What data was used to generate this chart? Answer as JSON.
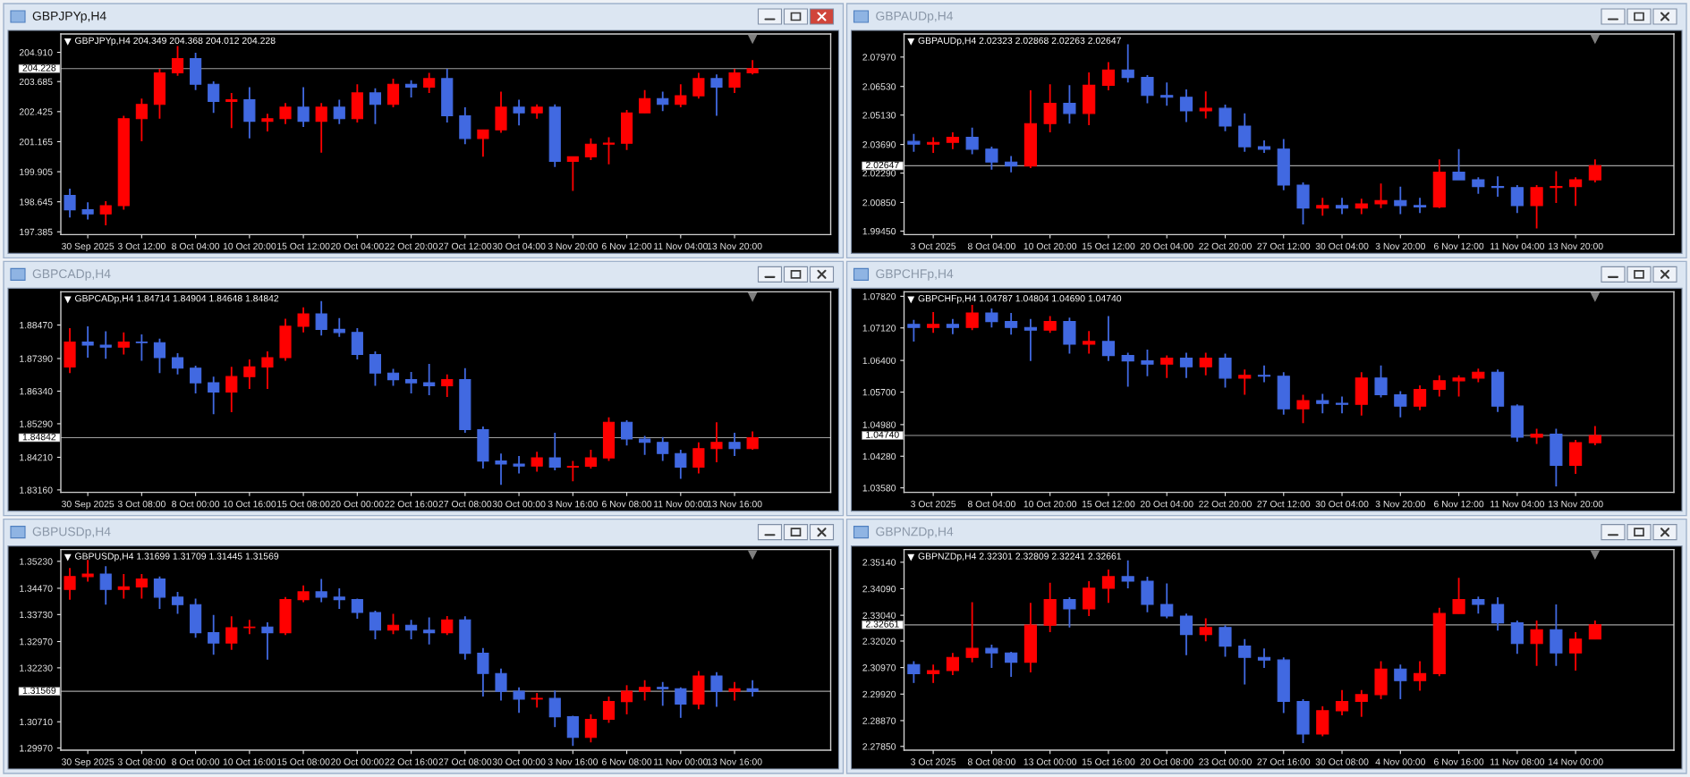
{
  "chart_data": [
    {
      "type": "candlestick",
      "title": "GBPJPYp,H4",
      "subtitle": "GBPJPYp,H4 204.349 204.368 204.012 204.228",
      "categories": [
        null,
        "30 Sep 2025",
        null,
        null,
        "3 Oct 12:00",
        null,
        null,
        "8 Oct 04:00",
        null,
        null,
        "10 Oct 20:00",
        null,
        null,
        "15 Oct 12:00",
        null,
        null,
        "20 Oct 04:00",
        null,
        null,
        "22 Oct 20:00",
        null,
        null,
        "27 Oct 12:00",
        null,
        null,
        "30 Oct 04:00",
        null,
        null,
        "3 Nov 20:00",
        null,
        null,
        "6 Nov 12:00",
        null,
        null,
        "11 Nov 04:00",
        null,
        null,
        "13 Nov 20:00",
        null
      ],
      "ohlc": [
        [
          198.91,
          199.19,
          197.99,
          198.31
        ],
        [
          198.31,
          198.62,
          197.9,
          198.14
        ],
        [
          198.14,
          198.67,
          197.66,
          198.48
        ],
        [
          198.48,
          202.25,
          198.31,
          202.13
        ],
        [
          202.13,
          202.97,
          201.18,
          202.73
        ],
        [
          202.73,
          204.22,
          202.13,
          204.05
        ],
        [
          204.05,
          205.17,
          203.93,
          204.65
        ],
        [
          204.65,
          204.89,
          203.33,
          203.57
        ],
        [
          203.57,
          203.69,
          202.37,
          202.85
        ],
        [
          202.85,
          203.21,
          201.73,
          202.92
        ],
        [
          202.92,
          203.45,
          201.3,
          202.02
        ],
        [
          202.02,
          202.33,
          201.59,
          202.13
        ],
        [
          202.13,
          202.78,
          201.9,
          202.61
        ],
        [
          202.61,
          203.45,
          201.78,
          202.02
        ],
        [
          202.02,
          202.78,
          200.7,
          202.61
        ],
        [
          202.61,
          202.92,
          201.9,
          202.13
        ],
        [
          202.13,
          203.57,
          201.97,
          203.21
        ],
        [
          203.21,
          203.4,
          201.9,
          202.73
        ],
        [
          202.73,
          203.81,
          202.61,
          203.57
        ],
        [
          203.57,
          203.74,
          203.02,
          203.45
        ],
        [
          203.45,
          204.05,
          203.21,
          203.81
        ],
        [
          203.81,
          204.22,
          201.97,
          202.25
        ],
        [
          202.25,
          202.61,
          201.06,
          201.3
        ],
        [
          201.3,
          201.66,
          200.53,
          201.66
        ],
        [
          201.66,
          203.26,
          201.54,
          202.61
        ],
        [
          202.61,
          202.92,
          201.85,
          202.37
        ],
        [
          202.37,
          202.73,
          202.13,
          202.61
        ],
        [
          202.61,
          202.73,
          200.1,
          200.34
        ],
        [
          200.34,
          200.53,
          199.1,
          200.53
        ],
        [
          200.53,
          201.3,
          200.39,
          201.06
        ],
        [
          201.06,
          201.35,
          200.22,
          201.1
        ],
        [
          201.1,
          202.49,
          200.82,
          202.37
        ],
        [
          202.37,
          203.33,
          202.37,
          202.97
        ],
        [
          202.97,
          203.26,
          202.45,
          202.73
        ],
        [
          202.73,
          203.57,
          202.61,
          203.09
        ],
        [
          203.09,
          204.05,
          202.97,
          203.81
        ],
        [
          203.81,
          203.98,
          202.25,
          203.45
        ],
        [
          203.45,
          204.22,
          203.21,
          204.05
        ],
        [
          204.05,
          204.58,
          203.98,
          204.228
        ]
      ],
      "colors": [
        "#4169e1",
        "#4169e1",
        "#ff0000",
        "#ff0000",
        "#ff0000",
        "#ff0000",
        "#ff0000",
        "#4169e1",
        "#4169e1",
        "#ff0000",
        "#4169e1",
        "#ff0000",
        "#ff0000",
        "#4169e1",
        "#ff0000",
        "#4169e1",
        "#ff0000",
        "#4169e1",
        "#ff0000",
        "#4169e1",
        "#ff0000",
        "#4169e1",
        "#4169e1",
        "#ff0000",
        "#ff0000",
        "#4169e1",
        "#ff0000",
        "#4169e1",
        "#ff0000",
        "#ff0000",
        "#ff0000",
        "#ff0000",
        "#ff0000",
        "#4169e1",
        "#ff0000",
        "#ff0000",
        "#4169e1",
        "#ff0000",
        "#ff0000"
      ],
      "ylim": [
        197.27,
        205.68
      ],
      "yticks": [
        {
          "value": 204.91,
          "label": "204.910"
        },
        {
          "value": 203.685,
          "label": "203.685"
        },
        {
          "value": 202.425,
          "label": "202.425"
        },
        {
          "value": 201.165,
          "label": "201.165"
        },
        {
          "value": 199.905,
          "label": "199.905"
        },
        {
          "value": 198.645,
          "label": "198.645"
        },
        {
          "value": 197.385,
          "label": "197.385"
        }
      ],
      "ref_lines": [
        {
          "axis": "y",
          "value": 204.228,
          "label": "204.228",
          "color": "#a0a0a0"
        }
      ]
    },
    {
      "type": "candlestick",
      "title": "GBPAUDp,H4",
      "subtitle": "GBPAUDp,H4 2.02323 2.02868 2.02263 2.02647",
      "categories": [
        null,
        "3 Oct 2025",
        null,
        null,
        "8 Oct 04:00",
        null,
        null,
        "10 Oct 20:00",
        null,
        null,
        "15 Oct 12:00",
        null,
        null,
        "20 Oct 04:00",
        null,
        null,
        "22 Oct 20:00",
        null,
        null,
        "27 Oct 12:00",
        null,
        null,
        "30 Oct 04:00",
        null,
        null,
        "3 Nov 20:00",
        null,
        null,
        "6 Nov 12:00",
        null,
        null,
        "11 Nov 04:00",
        null,
        null,
        "13 Nov 20:00",
        null
      ],
      "ohlc": [
        [
          2.0384,
          2.0421,
          2.0333,
          2.0371
        ],
        [
          2.0371,
          2.0404,
          2.0328,
          2.0379
        ],
        [
          2.0379,
          2.0429,
          2.0346,
          2.0404
        ],
        [
          2.0404,
          2.0451,
          2.0321,
          2.0346
        ],
        [
          2.0346,
          2.0358,
          2.0246,
          2.0283
        ],
        [
          2.0283,
          2.0313,
          2.0233,
          2.0263
        ],
        [
          2.0263,
          2.0634,
          2.0253,
          2.0471
        ],
        [
          2.0471,
          2.0664,
          2.0429,
          2.0571
        ],
        [
          2.0571,
          2.0659,
          2.0471,
          2.0521
        ],
        [
          2.0521,
          2.0722,
          2.0464,
          2.0659
        ],
        [
          2.0659,
          2.0772,
          2.0634,
          2.0734
        ],
        [
          2.0734,
          2.086,
          2.0672,
          2.0697
        ],
        [
          2.0697,
          2.0709,
          2.0571,
          2.0609
        ],
        [
          2.0609,
          2.0672,
          2.0559,
          2.06
        ],
        [
          2.06,
          2.0639,
          2.0479,
          2.0534
        ],
        [
          2.0534,
          2.0629,
          2.0496,
          2.0546
        ],
        [
          2.0546,
          2.0564,
          2.0434,
          2.0459
        ],
        [
          2.0459,
          2.0521,
          2.0333,
          2.0358
        ],
        [
          2.0358,
          2.0389,
          2.0328,
          2.0346
        ],
        [
          2.0346,
          2.0396,
          2.0145,
          2.017
        ],
        [
          2.017,
          2.0183,
          1.9978,
          2.0058
        ],
        [
          2.0058,
          2.0108,
          2.002,
          2.007
        ],
        [
          2.007,
          2.0108,
          2.0028,
          2.0058
        ],
        [
          2.0058,
          2.0103,
          2.0028,
          2.0078
        ],
        [
          2.0078,
          2.0178,
          2.0058,
          2.0095
        ],
        [
          2.0095,
          2.0163,
          2.0028,
          2.007
        ],
        [
          2.007,
          2.0108,
          2.0033,
          2.0063
        ],
        [
          2.0063,
          2.0296,
          2.0058,
          2.0233
        ],
        [
          2.0233,
          2.0346,
          2.0196,
          2.0196
        ],
        [
          2.0196,
          2.0208,
          2.0128,
          2.0163
        ],
        [
          2.0163,
          2.0213,
          2.0113,
          2.0158
        ],
        [
          2.0158,
          2.017,
          2.0033,
          2.007
        ],
        [
          2.007,
          2.017,
          1.9958,
          2.0158
        ],
        [
          2.0158,
          2.0238,
          2.0083,
          2.0163
        ],
        [
          2.0163,
          2.0208,
          2.0068,
          2.0196
        ],
        [
          2.0196,
          2.0296,
          2.0183,
          2.02647
        ]
      ],
      "colors": [
        "#4169e1",
        "#ff0000",
        "#ff0000",
        "#4169e1",
        "#4169e1",
        "#4169e1",
        "#ff0000",
        "#ff0000",
        "#4169e1",
        "#ff0000",
        "#ff0000",
        "#4169e1",
        "#4169e1",
        "#4169e1",
        "#4169e1",
        "#ff0000",
        "#4169e1",
        "#4169e1",
        "#4169e1",
        "#4169e1",
        "#4169e1",
        "#ff0000",
        "#4169e1",
        "#ff0000",
        "#ff0000",
        "#4169e1",
        "#4169e1",
        "#ff0000",
        "#4169e1",
        "#4169e1",
        "#4169e1",
        "#4169e1",
        "#ff0000",
        "#ff0000",
        "#ff0000",
        "#ff0000"
      ],
      "ylim": [
        1.9928,
        2.091
      ],
      "yticks": [
        {
          "value": 2.0797,
          "label": "2.07970"
        },
        {
          "value": 2.0653,
          "label": "2.06530"
        },
        {
          "value": 2.0513,
          "label": "2.05130"
        },
        {
          "value": 2.0369,
          "label": "2.03690"
        },
        {
          "value": 2.0229,
          "label": "2.02290"
        },
        {
          "value": 2.0085,
          "label": "2.00850"
        },
        {
          "value": 1.9945,
          "label": "1.99450"
        }
      ],
      "ref_lines": [
        {
          "axis": "y",
          "value": 2.02647,
          "label": "2.02647",
          "color": "#a0a0a0"
        }
      ]
    },
    {
      "type": "candlestick",
      "title": "GBPCADp,H4",
      "subtitle": "GBPCADp,H4 1.84714 1.84904 1.84648 1.84842",
      "categories": [
        null,
        "30 Sep 2025",
        null,
        null,
        "3 Oct 08:00",
        null,
        null,
        "8 Oct 00:00",
        null,
        null,
        "10 Oct 16:00",
        null,
        null,
        "15 Oct 08:00",
        null,
        null,
        "20 Oct 00:00",
        null,
        null,
        "22 Oct 16:00",
        null,
        null,
        "27 Oct 08:00",
        null,
        null,
        "30 Oct 00:00",
        null,
        null,
        "3 Nov 16:00",
        null,
        null,
        "6 Nov 08:00",
        null,
        null,
        "11 Nov 00:00",
        null,
        null,
        "13 Nov 16:00",
        null
      ],
      "ohlc": [
        [
          1.8712,
          1.8837,
          1.8692,
          1.8792
        ],
        [
          1.8792,
          1.8843,
          1.8742,
          1.8782
        ],
        [
          1.8782,
          1.8827,
          1.8738,
          1.8776
        ],
        [
          1.8776,
          1.8823,
          1.8752,
          1.8792
        ],
        [
          1.8792,
          1.8817,
          1.8732,
          1.879
        ],
        [
          1.879,
          1.8803,
          1.8692,
          1.8742
        ],
        [
          1.8742,
          1.8756,
          1.8688,
          1.8708
        ],
        [
          1.8708,
          1.8716,
          1.8627,
          1.8661
        ],
        [
          1.8661,
          1.8681,
          1.856,
          1.8631
        ],
        [
          1.8631,
          1.8712,
          1.8566,
          1.8681
        ],
        [
          1.8681,
          1.8736,
          1.8641,
          1.8712
        ],
        [
          1.8712,
          1.8762,
          1.8641,
          1.8742
        ],
        [
          1.8742,
          1.8867,
          1.8732,
          1.8843
        ],
        [
          1.8843,
          1.8904,
          1.8823,
          1.8883
        ],
        [
          1.8883,
          1.8924,
          1.8813,
          1.8833
        ],
        [
          1.8833,
          1.8869,
          1.8809,
          1.8823
        ],
        [
          1.8823,
          1.8837,
          1.8736,
          1.8752
        ],
        [
          1.8752,
          1.8762,
          1.8651,
          1.8692
        ],
        [
          1.8692,
          1.8706,
          1.8651,
          1.8671
        ],
        [
          1.8671,
          1.8696,
          1.8627,
          1.8661
        ],
        [
          1.8661,
          1.8722,
          1.8621,
          1.8651
        ],
        [
          1.8651,
          1.8688,
          1.8615,
          1.8671
        ],
        [
          1.8671,
          1.8708,
          1.85,
          1.851
        ],
        [
          1.851,
          1.852,
          1.8385,
          1.8409
        ],
        [
          1.8409,
          1.8433,
          1.8332,
          1.8399
        ],
        [
          1.8399,
          1.8425,
          1.8369,
          1.8393
        ],
        [
          1.8393,
          1.8439,
          1.8375,
          1.8419
        ],
        [
          1.8419,
          1.85,
          1.8379,
          1.8389
        ],
        [
          1.8389,
          1.8409,
          1.8344,
          1.8392
        ],
        [
          1.8392,
          1.8445,
          1.8385,
          1.8419
        ],
        [
          1.8419,
          1.855,
          1.8409,
          1.8534
        ],
        [
          1.8534,
          1.854,
          1.8459,
          1.848
        ],
        [
          1.848,
          1.849,
          1.8429,
          1.8469
        ],
        [
          1.8469,
          1.8486,
          1.8409,
          1.8433
        ],
        [
          1.8433,
          1.8445,
          1.8352,
          1.8389
        ],
        [
          1.8389,
          1.8469,
          1.8369,
          1.8449
        ],
        [
          1.8449,
          1.8534,
          1.8405,
          1.8469
        ],
        [
          1.8469,
          1.85,
          1.8425,
          1.8449
        ],
        [
          1.8449,
          1.8504,
          1.8445,
          1.84842
        ]
      ],
      "colors": [
        "#ff0000",
        "#4169e1",
        "#4169e1",
        "#ff0000",
        "#4169e1",
        "#4169e1",
        "#4169e1",
        "#4169e1",
        "#4169e1",
        "#ff0000",
        "#ff0000",
        "#ff0000",
        "#ff0000",
        "#ff0000",
        "#4169e1",
        "#4169e1",
        "#4169e1",
        "#4169e1",
        "#4169e1",
        "#4169e1",
        "#4169e1",
        "#ff0000",
        "#4169e1",
        "#4169e1",
        "#4169e1",
        "#4169e1",
        "#ff0000",
        "#4169e1",
        "#ff0000",
        "#ff0000",
        "#ff0000",
        "#4169e1",
        "#4169e1",
        "#4169e1",
        "#4169e1",
        "#ff0000",
        "#ff0000",
        "#4169e1",
        "#ff0000"
      ],
      "ylim": [
        1.8308,
        1.8954
      ],
      "yticks": [
        {
          "value": 1.8847,
          "label": "1.88470"
        },
        {
          "value": 1.8739,
          "label": "1.87390"
        },
        {
          "value": 1.8634,
          "label": "1.86340"
        },
        {
          "value": 1.8529,
          "label": "1.85290"
        },
        {
          "value": 1.8421,
          "label": "1.84210"
        },
        {
          "value": 1.8316,
          "label": "1.83160"
        }
      ],
      "ref_lines": [
        {
          "axis": "y",
          "value": 1.84842,
          "label": "1.84842",
          "color": "#a0a0a0"
        }
      ]
    },
    {
      "type": "candlestick",
      "title": "GBPCHFp,H4",
      "subtitle": "GBPCHFp,H4 1.04787 1.04804 1.04690 1.04740",
      "categories": [
        null,
        "3 Oct 2025",
        null,
        null,
        "8 Oct 04:00",
        null,
        null,
        "10 Oct 20:00",
        null,
        null,
        "15 Oct 12:00",
        null,
        null,
        "20 Oct 04:00",
        null,
        null,
        "22 Oct 20:00",
        null,
        null,
        "27 Oct 12:00",
        null,
        null,
        "30 Oct 04:00",
        null,
        null,
        "3 Nov 20:00",
        null,
        null,
        "6 Nov 12:00",
        null,
        null,
        "11 Nov 04:00",
        null,
        null,
        "13 Nov 20:00",
        null
      ],
      "ohlc": [
        [
          1.072,
          1.073,
          1.0682,
          1.0713
        ],
        [
          1.0713,
          1.0747,
          1.0701,
          1.072
        ],
        [
          1.072,
          1.0732,
          1.0698,
          1.0713
        ],
        [
          1.0713,
          1.0763,
          1.0707,
          1.0745
        ],
        [
          1.0745,
          1.0755,
          1.0713,
          1.0726
        ],
        [
          1.0726,
          1.0745,
          1.0697,
          1.0713
        ],
        [
          1.0713,
          1.0732,
          1.0639,
          1.0707
        ],
        [
          1.0707,
          1.0738,
          1.0701,
          1.0726
        ],
        [
          1.0726,
          1.0735,
          1.0655,
          1.0676
        ],
        [
          1.0676,
          1.0705,
          1.0655,
          1.0682
        ],
        [
          1.0682,
          1.0738,
          1.0639,
          1.0651
        ],
        [
          1.0651,
          1.0657,
          1.0582,
          1.0639
        ],
        [
          1.0639,
          1.0664,
          1.0605,
          1.0632
        ],
        [
          1.0632,
          1.0651,
          1.0601,
          1.0645
        ],
        [
          1.0645,
          1.0657,
          1.0601,
          1.0626
        ],
        [
          1.0626,
          1.0657,
          1.0607,
          1.0645
        ],
        [
          1.0645,
          1.0655,
          1.058,
          1.0601
        ],
        [
          1.0601,
          1.062,
          1.0564,
          1.0607
        ],
        [
          1.0607,
          1.0629,
          1.0592,
          1.0605
        ],
        [
          1.0605,
          1.0614,
          1.052,
          1.0533
        ],
        [
          1.0533,
          1.0564,
          1.0501,
          1.0551
        ],
        [
          1.0551,
          1.0566,
          1.0523,
          1.0545
        ],
        [
          1.0545,
          1.056,
          1.0523,
          1.0543
        ],
        [
          1.0543,
          1.0614,
          1.0518,
          1.0601
        ],
        [
          1.0601,
          1.0629,
          1.0558,
          1.0564
        ],
        [
          1.0564,
          1.0572,
          1.0514,
          1.0539
        ],
        [
          1.0539,
          1.0585,
          1.053,
          1.0576
        ],
        [
          1.0576,
          1.0607,
          1.056,
          1.0595
        ],
        [
          1.0595,
          1.0607,
          1.056,
          1.0601
        ],
        [
          1.0601,
          1.0622,
          1.0592,
          1.0614
        ],
        [
          1.0614,
          1.062,
          1.0526,
          1.0539
        ],
        [
          1.0539,
          1.0543,
          1.046,
          1.047
        ],
        [
          1.047,
          1.0489,
          1.0455,
          1.0477
        ],
        [
          1.0477,
          1.0489,
          1.0361,
          1.0408
        ],
        [
          1.0408,
          1.0464,
          1.0389,
          1.0458
        ],
        [
          1.0458,
          1.0495,
          1.0452,
          1.0474
        ]
      ],
      "colors": [
        "#4169e1",
        "#ff0000",
        "#4169e1",
        "#ff0000",
        "#4169e1",
        "#4169e1",
        "#4169e1",
        "#ff0000",
        "#4169e1",
        "#ff0000",
        "#4169e1",
        "#4169e1",
        "#4169e1",
        "#ff0000",
        "#4169e1",
        "#ff0000",
        "#4169e1",
        "#ff0000",
        "#4169e1",
        "#4169e1",
        "#ff0000",
        "#4169e1",
        "#4169e1",
        "#ff0000",
        "#4169e1",
        "#4169e1",
        "#ff0000",
        "#ff0000",
        "#ff0000",
        "#ff0000",
        "#4169e1",
        "#4169e1",
        "#ff0000",
        "#4169e1",
        "#ff0000",
        "#ff0000"
      ],
      "ylim": [
        1.0348,
        1.0792
      ],
      "yticks": [
        {
          "value": 1.0782,
          "label": "1.07820"
        },
        {
          "value": 1.0712,
          "label": "1.07120"
        },
        {
          "value": 1.064,
          "label": "1.06400"
        },
        {
          "value": 1.057,
          "label": "1.05700"
        },
        {
          "value": 1.0498,
          "label": "1.04980"
        },
        {
          "value": 1.0428,
          "label": "1.04280"
        },
        {
          "value": 1.0358,
          "label": "1.03580"
        }
      ],
      "ref_lines": [
        {
          "axis": "y",
          "value": 1.0474,
          "label": "1.04740",
          "color": "#a0a0a0"
        }
      ]
    },
    {
      "type": "candlestick",
      "title": "GBPUSDp,H4",
      "subtitle": "GBPUSDp,H4 1.31699 1.31709 1.31445 1.31569",
      "categories": [
        null,
        "30 Sep 2025",
        null,
        null,
        "3 Oct 08:00",
        null,
        null,
        "8 Oct 00:00",
        null,
        null,
        "10 Oct 16:00",
        null,
        null,
        "15 Oct 08:00",
        null,
        null,
        "20 Oct 00:00",
        null,
        null,
        "22 Oct 16:00",
        null,
        null,
        "27 Oct 08:00",
        null,
        null,
        "30 Oct 00:00",
        null,
        null,
        "3 Nov 16:00",
        null,
        null,
        "6 Nov 08:00",
        null,
        null,
        "11 Nov 00:00",
        null,
        null,
        "13 Nov 16:00",
        null
      ],
      "ohlc": [
        [
          1.3444,
          1.3504,
          1.3415,
          1.348
        ],
        [
          1.348,
          1.3527,
          1.3466,
          1.3487
        ],
        [
          1.3487,
          1.3509,
          1.3401,
          1.3444
        ],
        [
          1.3444,
          1.3487,
          1.3418,
          1.3451
        ],
        [
          1.3451,
          1.3487,
          1.3418,
          1.3473
        ],
        [
          1.3473,
          1.348,
          1.3389,
          1.3422
        ],
        [
          1.3422,
          1.3437,
          1.3375,
          1.3401
        ],
        [
          1.3401,
          1.3418,
          1.3308,
          1.3322
        ],
        [
          1.3322,
          1.3372,
          1.326,
          1.3293
        ],
        [
          1.3293,
          1.3368,
          1.3274,
          1.3336
        ],
        [
          1.3336,
          1.3358,
          1.3318,
          1.3338
        ],
        [
          1.3338,
          1.3351,
          1.3246,
          1.3322
        ],
        [
          1.3322,
          1.3422,
          1.3315,
          1.3415
        ],
        [
          1.3415,
          1.3455,
          1.3408,
          1.3437
        ],
        [
          1.3437,
          1.3473,
          1.3408,
          1.3422
        ],
        [
          1.3422,
          1.3447,
          1.3389,
          1.3415
        ],
        [
          1.3415,
          1.3418,
          1.3361,
          1.3379
        ],
        [
          1.3379,
          1.3384,
          1.3303,
          1.3329
        ],
        [
          1.3329,
          1.3375,
          1.3318,
          1.3343
        ],
        [
          1.3343,
          1.3358,
          1.3303,
          1.3329
        ],
        [
          1.3329,
          1.3365,
          1.3289,
          1.3322
        ],
        [
          1.3322,
          1.3369,
          1.3315,
          1.3358
        ],
        [
          1.3358,
          1.3368,
          1.3246,
          1.3264
        ],
        [
          1.3264,
          1.3279,
          1.3142,
          1.3207
        ],
        [
          1.3207,
          1.3221,
          1.3131,
          1.3157
        ],
        [
          1.3157,
          1.3168,
          1.3096,
          1.3135
        ],
        [
          1.3135,
          1.3152,
          1.3111,
          1.3137
        ],
        [
          1.3137,
          1.3159,
          1.3056,
          1.3085
        ],
        [
          1.3085,
          1.3088,
          1.3003,
          1.3027
        ],
        [
          1.3027,
          1.3092,
          1.3013,
          1.3078
        ],
        [
          1.3078,
          1.3142,
          1.3068,
          1.3128
        ],
        [
          1.3128,
          1.3174,
          1.3092,
          1.3157
        ],
        [
          1.3157,
          1.3188,
          1.3131,
          1.3168
        ],
        [
          1.3168,
          1.3183,
          1.3116,
          1.3164
        ],
        [
          1.3164,
          1.3168,
          1.3082,
          1.3121
        ],
        [
          1.3121,
          1.3214,
          1.3106,
          1.32
        ],
        [
          1.32,
          1.3211,
          1.3113,
          1.3157
        ],
        [
          1.3157,
          1.3183,
          1.3131,
          1.3164
        ],
        [
          1.3164,
          1.3188,
          1.3142,
          1.31569
        ]
      ],
      "colors": [
        "#ff0000",
        "#ff0000",
        "#4169e1",
        "#ff0000",
        "#ff0000",
        "#4169e1",
        "#4169e1",
        "#4169e1",
        "#4169e1",
        "#ff0000",
        "#ff0000",
        "#4169e1",
        "#ff0000",
        "#ff0000",
        "#4169e1",
        "#4169e1",
        "#4169e1",
        "#4169e1",
        "#ff0000",
        "#4169e1",
        "#4169e1",
        "#ff0000",
        "#4169e1",
        "#4169e1",
        "#4169e1",
        "#4169e1",
        "#ff0000",
        "#4169e1",
        "#4169e1",
        "#ff0000",
        "#ff0000",
        "#ff0000",
        "#ff0000",
        "#4169e1",
        "#4169e1",
        "#ff0000",
        "#4169e1",
        "#ff0000",
        "#4169e1"
      ],
      "ylim": [
        1.2991,
        1.3556
      ],
      "yticks": [
        {
          "value": 1.3523,
          "label": "1.35230"
        },
        {
          "value": 1.3447,
          "label": "1.34470"
        },
        {
          "value": 1.3373,
          "label": "1.33730"
        },
        {
          "value": 1.3297,
          "label": "1.32970"
        },
        {
          "value": 1.3223,
          "label": "1.32230"
        },
        {
          "value": 1.3147,
          "label": null
        },
        {
          "value": 1.3071,
          "label": "1.30710"
        },
        {
          "value": 1.2997,
          "label": "1.29970"
        }
      ],
      "ref_lines": [
        {
          "axis": "y",
          "value": 1.31569,
          "label": "1.31569",
          "color": "#a0a0a0"
        }
      ]
    },
    {
      "type": "candlestick",
      "title": "GBPNZDp,H4",
      "subtitle": "GBPNZDp,H4 2.32301 2.32809 2.32241 2.32661",
      "categories": [
        null,
        "3 Oct 2025",
        null,
        null,
        "8 Oct 08:00",
        null,
        null,
        "13 Oct 00:00",
        null,
        null,
        "15 Oct 16:00",
        null,
        null,
        "20 Oct 08:00",
        null,
        null,
        "23 Oct 00:00",
        null,
        null,
        "27 Oct 16:00",
        null,
        null,
        "30 Oct 08:00",
        null,
        null,
        "4 Nov 00:00",
        null,
        null,
        "6 Nov 16:00",
        null,
        null,
        "11 Nov 08:00",
        null,
        null,
        "14 Nov 00:00",
        null
      ],
      "ohlc": [
        [
          2.3109,
          2.3122,
          2.3036,
          2.3073
        ],
        [
          2.3073,
          2.3109,
          2.3036,
          2.3085
        ],
        [
          2.3085,
          2.3155,
          2.3067,
          2.3137
        ],
        [
          2.3137,
          2.3356,
          2.3118,
          2.3173
        ],
        [
          2.3173,
          2.3188,
          2.3096,
          2.3155
        ],
        [
          2.3155,
          2.3159,
          2.306,
          2.3118
        ],
        [
          2.3118,
          2.3353,
          2.3078,
          2.3265
        ],
        [
          2.3265,
          2.3433,
          2.3237,
          2.3366
        ],
        [
          2.3366,
          2.3375,
          2.3256,
          2.3329
        ],
        [
          2.3329,
          2.3439,
          2.3301,
          2.3411
        ],
        [
          2.3411,
          2.3485,
          2.3353,
          2.3457
        ],
        [
          2.3457,
          2.3521,
          2.3411,
          2.3439
        ],
        [
          2.3439,
          2.3457,
          2.3316,
          2.3347
        ],
        [
          2.3347,
          2.343,
          2.3292,
          2.3301
        ],
        [
          2.3301,
          2.3311,
          2.3146,
          2.3228
        ],
        [
          2.3228,
          2.3292,
          2.3201,
          2.3256
        ],
        [
          2.3256,
          2.3265,
          2.314,
          2.3182
        ],
        [
          2.3182,
          2.321,
          2.303,
          2.3137
        ],
        [
          2.3137,
          2.3173,
          2.3096,
          2.3127
        ],
        [
          2.3127,
          2.3137,
          2.2917,
          2.2963
        ],
        [
          2.2963,
          2.2972,
          2.2798,
          2.2834
        ],
        [
          2.2834,
          2.2944,
          2.2825,
          2.2926
        ],
        [
          2.2926,
          2.3008,
          2.2908,
          2.2963
        ],
        [
          2.2963,
          2.3008,
          2.2902,
          2.299
        ],
        [
          2.299,
          2.3122,
          2.2972,
          2.3091
        ],
        [
          2.3091,
          2.3109,
          2.2972,
          2.3045
        ],
        [
          2.3045,
          2.3122,
          2.3005,
          2.3073
        ],
        [
          2.3073,
          2.3334,
          2.3063,
          2.3311
        ],
        [
          2.3311,
          2.3452,
          2.3311,
          2.3366
        ],
        [
          2.3366,
          2.3378,
          2.3311,
          2.3347
        ],
        [
          2.3347,
          2.3375,
          2.3243,
          2.3274
        ],
        [
          2.3274,
          2.3283,
          2.3151,
          2.3192
        ],
        [
          2.3192,
          2.3283,
          2.3104,
          2.3247
        ],
        [
          2.3247,
          2.3347,
          2.3104,
          2.3155
        ],
        [
          2.3155,
          2.3237,
          2.3085,
          2.321
        ],
        [
          2.321,
          2.3283,
          2.321,
          2.32661
        ]
      ],
      "colors": [
        "#4169e1",
        "#ff0000",
        "#ff0000",
        "#ff0000",
        "#4169e1",
        "#4169e1",
        "#ff0000",
        "#ff0000",
        "#4169e1",
        "#ff0000",
        "#ff0000",
        "#4169e1",
        "#4169e1",
        "#4169e1",
        "#4169e1",
        "#ff0000",
        "#4169e1",
        "#4169e1",
        "#4169e1",
        "#4169e1",
        "#4169e1",
        "#ff0000",
        "#ff0000",
        "#ff0000",
        "#ff0000",
        "#4169e1",
        "#ff0000",
        "#ff0000",
        "#ff0000",
        "#4169e1",
        "#4169e1",
        "#4169e1",
        "#ff0000",
        "#4169e1",
        "#ff0000",
        "#ff0000"
      ],
      "ylim": [
        2.277,
        2.3564
      ],
      "yticks": [
        {
          "value": 2.3514,
          "label": "2.35140"
        },
        {
          "value": 2.3409,
          "label": "2.34090"
        },
        {
          "value": 2.3304,
          "label": "2.33040"
        },
        {
          "value": 2.3202,
          "label": "2.32020"
        },
        {
          "value": 2.3097,
          "label": "2.30970"
        },
        {
          "value": 2.2992,
          "label": "2.29920"
        },
        {
          "value": 2.2887,
          "label": "2.28870"
        },
        {
          "value": 2.2785,
          "label": "2.27850"
        }
      ],
      "ref_lines": [
        {
          "axis": "y",
          "value": 2.32661,
          "label": "2.32661",
          "color": "#a0a0a0"
        }
      ]
    }
  ]
}
